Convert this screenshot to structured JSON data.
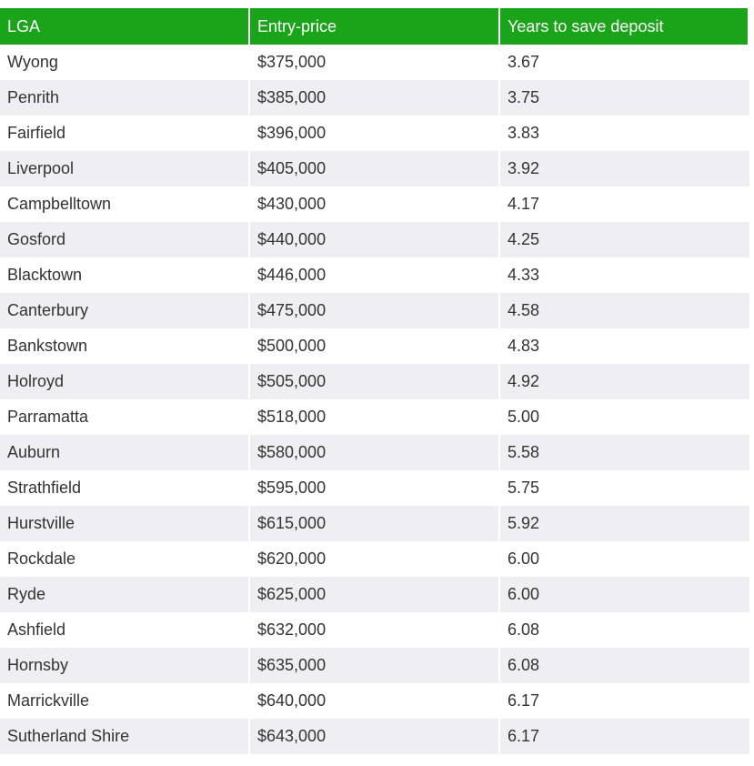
{
  "table": {
    "headers": [
      "LGA",
      "Entry-price",
      "Years to save deposit"
    ],
    "header_color": "#1aa41a",
    "stripe_color": "#efeff3",
    "rows": [
      [
        "Wyong",
        "$375,000",
        "3.67"
      ],
      [
        "Penrith",
        "$385,000",
        "3.75"
      ],
      [
        "Fairfield",
        "$396,000",
        "3.83"
      ],
      [
        "Liverpool",
        "$405,000",
        "3.92"
      ],
      [
        "Campbelltown",
        "$430,000",
        "4.17"
      ],
      [
        "Gosford",
        "$440,000",
        "4.25"
      ],
      [
        "Blacktown",
        "$446,000",
        "4.33"
      ],
      [
        "Canterbury",
        "$475,000",
        "4.58"
      ],
      [
        "Bankstown",
        "$500,000",
        "4.83"
      ],
      [
        "Holroyd",
        "$505,000",
        "4.92"
      ],
      [
        "Parramatta",
        "$518,000",
        "5.00"
      ],
      [
        "Auburn",
        "$580,000",
        "5.58"
      ],
      [
        "Strathfield",
        "$595,000",
        "5.75"
      ],
      [
        "Hurstville",
        "$615,000",
        "5.92"
      ],
      [
        "Rockdale",
        "$620,000",
        "6.00"
      ],
      [
        "Ryde",
        "$625,000",
        "6.00"
      ],
      [
        "Ashfield",
        "$632,000",
        "6.08"
      ],
      [
        "Hornsby",
        "$635,000",
        "6.08"
      ],
      [
        "Marrickville",
        "$640,000",
        "6.17"
      ],
      [
        "Sutherland Shire",
        "$643,000",
        "6.17"
      ]
    ]
  }
}
